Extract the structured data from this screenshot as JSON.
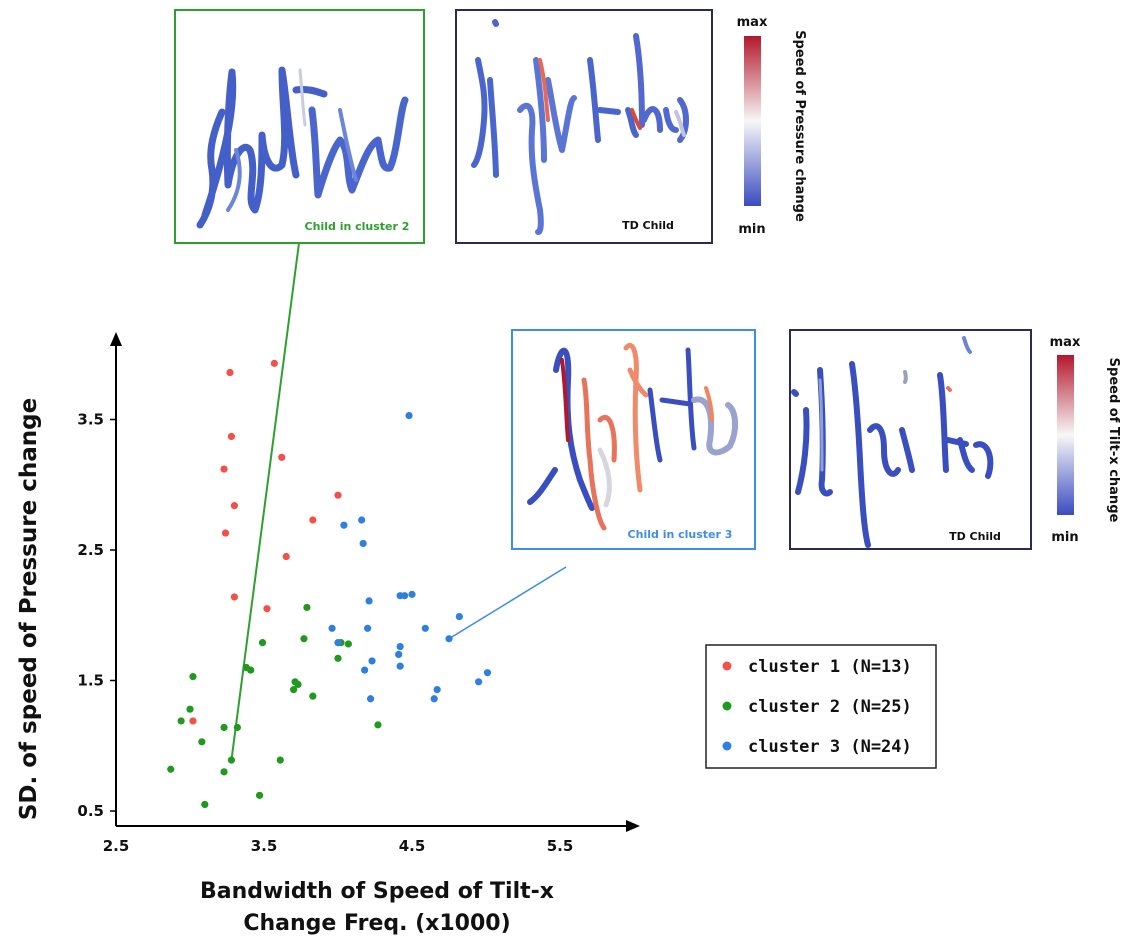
{
  "chart_data": {
    "type": "scatter",
    "xlabel_line1": "Bandwidth of Speed of Tilt-x",
    "xlabel_line2": "Change Freq. (x1000)",
    "ylabel": "SD. of speed of Pressure change",
    "xlim": [
      2.5,
      6.0
    ],
    "ylim": [
      0.4,
      4.0
    ],
    "x_ticks": [
      "2.5",
      "3.5",
      "4.5",
      "5.5"
    ],
    "y_ticks": [
      "0.5",
      "1.5",
      "2.5",
      "3.5"
    ],
    "grid": false,
    "legend_position": "lower-right",
    "series": [
      {
        "name": "cluster 1 (N=13)",
        "color": "#f0524a",
        "points": [
          [
            3.27,
            3.86
          ],
          [
            3.57,
            3.93
          ],
          [
            3.28,
            3.37
          ],
          [
            3.23,
            3.12
          ],
          [
            3.62,
            3.21
          ],
          [
            3.3,
            2.84
          ],
          [
            4.0,
            2.92
          ],
          [
            3.24,
            2.63
          ],
          [
            3.83,
            2.73
          ],
          [
            3.65,
            2.45
          ],
          [
            3.3,
            2.14
          ],
          [
            3.52,
            2.05
          ],
          [
            3.02,
            1.19
          ]
        ]
      },
      {
        "name": "cluster 2 (N=25)",
        "color": "#1f9a1f",
        "points": [
          [
            2.87,
            0.82
          ],
          [
            2.94,
            1.19
          ],
          [
            3.0,
            1.28
          ],
          [
            3.02,
            1.53
          ],
          [
            3.08,
            1.03
          ],
          [
            3.1,
            0.55
          ],
          [
            3.23,
            0.8
          ],
          [
            3.23,
            1.14
          ],
          [
            3.28,
            0.89
          ],
          [
            3.32,
            1.14
          ],
          [
            3.38,
            1.6
          ],
          [
            3.41,
            1.58
          ],
          [
            3.47,
            0.62
          ],
          [
            3.49,
            1.79
          ],
          [
            3.61,
            0.89
          ],
          [
            3.7,
            1.43
          ],
          [
            3.71,
            1.49
          ],
          [
            3.73,
            1.47
          ],
          [
            3.77,
            1.82
          ],
          [
            3.79,
            2.06
          ],
          [
            3.83,
            1.38
          ],
          [
            4.0,
            1.67
          ],
          [
            4.02,
            1.79
          ],
          [
            4.07,
            1.78
          ],
          [
            4.27,
            1.16
          ]
        ]
      },
      {
        "name": "cluster 3 (N=24)",
        "color": "#2f7fe0",
        "points": [
          [
            3.96,
            1.9
          ],
          [
            4.0,
            1.79
          ],
          [
            4.04,
            2.69
          ],
          [
            4.16,
            2.73
          ],
          [
            4.17,
            2.55
          ],
          [
            4.18,
            1.58
          ],
          [
            4.2,
            1.9
          ],
          [
            4.21,
            2.11
          ],
          [
            4.22,
            1.36
          ],
          [
            4.23,
            1.65
          ],
          [
            4.41,
            1.7
          ],
          [
            4.42,
            1.76
          ],
          [
            4.42,
            1.61
          ],
          [
            4.42,
            2.15
          ],
          [
            4.45,
            2.15
          ],
          [
            4.5,
            2.16
          ],
          [
            4.48,
            3.53
          ],
          [
            4.59,
            1.9
          ],
          [
            4.65,
            1.36
          ],
          [
            4.67,
            1.43
          ],
          [
            4.75,
            1.82
          ],
          [
            4.82,
            1.99
          ],
          [
            4.95,
            1.49
          ],
          [
            5.01,
            1.56
          ]
        ]
      }
    ],
    "callout_points": {
      "cluster_2_child": [
        3.28,
        0.89
      ],
      "cluster_3_child": [
        4.75,
        1.82
      ]
    }
  },
  "insets": {
    "cluster2": {
      "label": "Child in cluster 2",
      "border": "#2ea02e",
      "label_color": "#2ea02e"
    },
    "td_pressure": {
      "label": "TD Child",
      "border": "#2b2b55",
      "label_color": "#111111"
    },
    "cluster3": {
      "label": "Child in cluster 3",
      "border": "#3d8ee6",
      "label_color": "#3d8ee6"
    },
    "td_tilt": {
      "label": "TD Child",
      "border": "#2b2b55",
      "label_color": "#111111"
    }
  },
  "colorbars": {
    "pressure": {
      "title": "Speed of Pressure change",
      "max": "max",
      "min": "min"
    },
    "tilt": {
      "title": "Speed of Tilt-x change",
      "max": "max",
      "min": "min"
    }
  },
  "colors": {
    "cbar_high": "#b2182b",
    "cbar_mid": "#f7f7f7",
    "cbar_low": "#3b4cc0"
  }
}
